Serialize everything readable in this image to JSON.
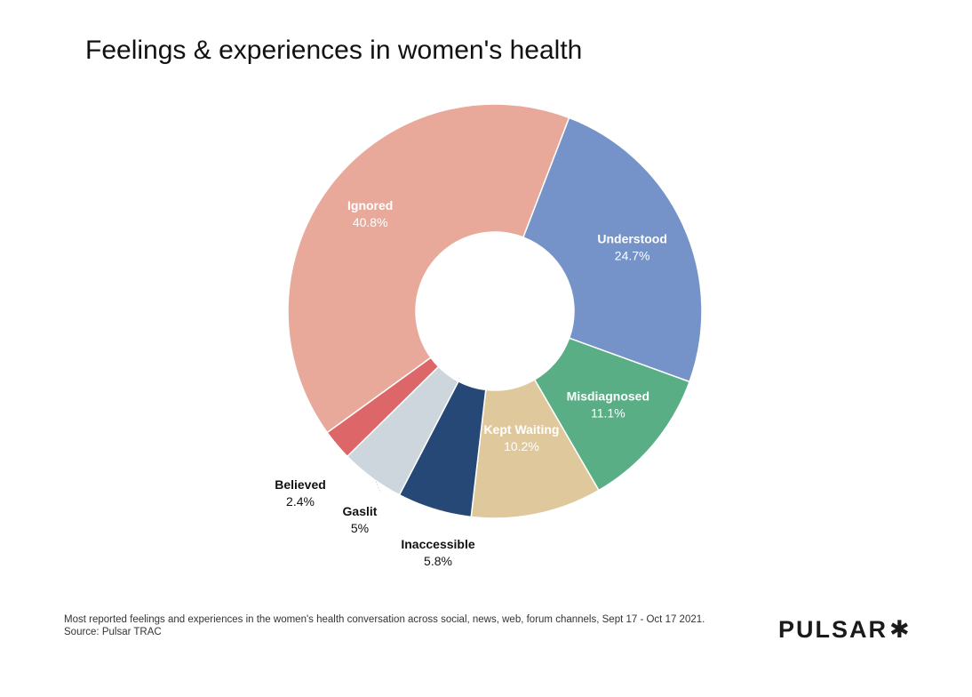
{
  "chart_data": {
    "type": "pie",
    "title": "Feelings & experiences in women's health",
    "slices": [
      {
        "label": "Understood",
        "display": "24.7%",
        "value": 24.7,
        "color": "#7593c9"
      },
      {
        "label": "Misdiagnosed",
        "display": "11.1%",
        "value": 11.1,
        "color": "#5aae86"
      },
      {
        "label": "Kept Waiting",
        "display": "10.2%",
        "value": 10.2,
        "color": "#dfc99c"
      },
      {
        "label": "Inaccessible",
        "display": "5.8%",
        "value": 5.8,
        "color": "#264876"
      },
      {
        "label": "Gaslit",
        "display": "5%",
        "value": 5.0,
        "color": "#cdd5dd"
      },
      {
        "label": "Believed",
        "display": "2.4%",
        "value": 2.4,
        "color": "#dd6669"
      },
      {
        "label": "Ignored",
        "display": "40.8%",
        "value": 40.8,
        "color": "#e8a99b"
      }
    ]
  },
  "footnote": {
    "line1": "Most reported feelings and experiences in the women's health conversation across social, news, web, forum channels, Sept 17 - Oct 17 2021.",
    "line2": "Source: Pulsar TRAC"
  },
  "brand": {
    "name": "PULSAR",
    "mark": "✱"
  }
}
